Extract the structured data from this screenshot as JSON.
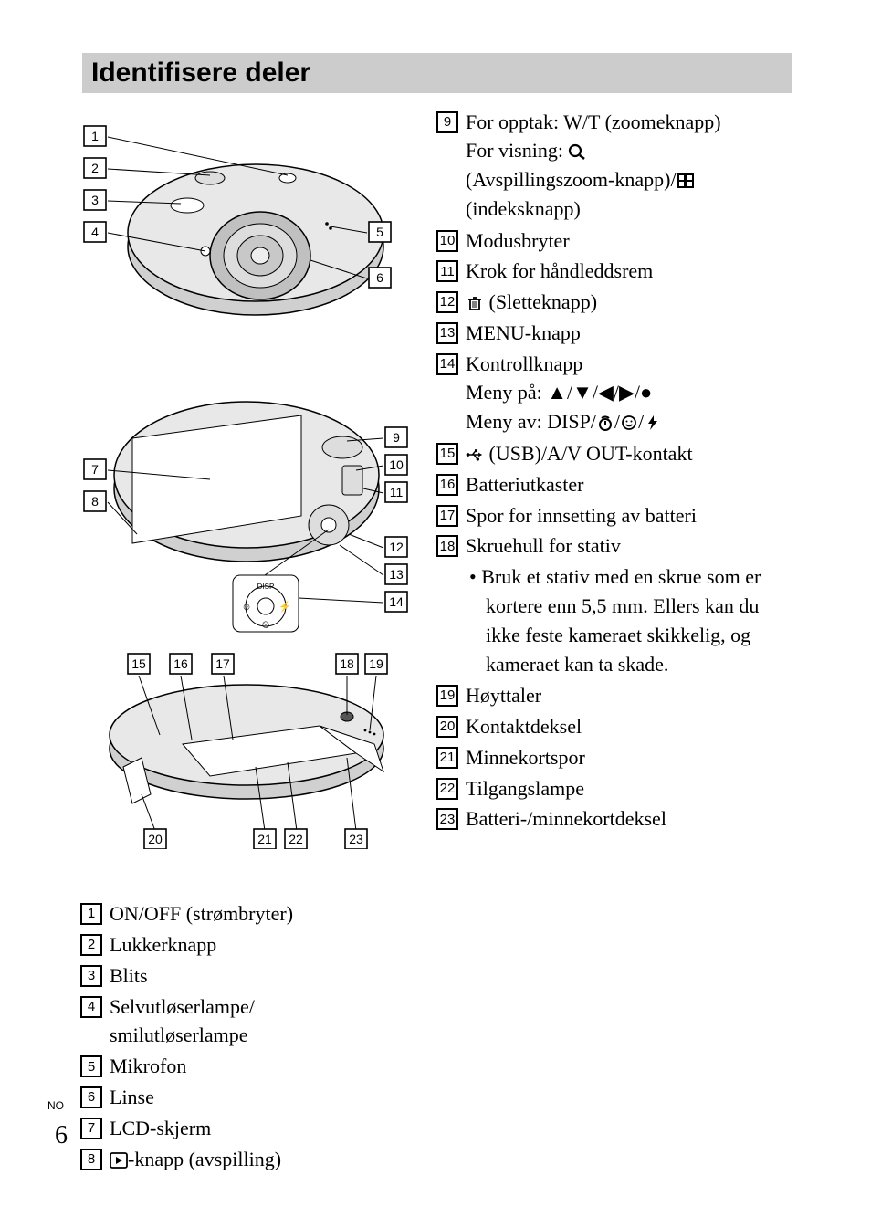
{
  "heading": "Identifisere deler",
  "page_label": "NO",
  "page_number": "6",
  "left_list_start": 1,
  "left_list": [
    {
      "n": "1",
      "lines": [
        "ON/OFF (strømbryter)"
      ]
    },
    {
      "n": "2",
      "lines": [
        "Lukkerknapp"
      ]
    },
    {
      "n": "3",
      "lines": [
        "Blits"
      ]
    },
    {
      "n": "4",
      "lines": [
        "Selvutløserlampe/",
        "smilutløserlampe"
      ]
    },
    {
      "n": "5",
      "lines": [
        "Mikrofon"
      ]
    },
    {
      "n": "6",
      "lines": [
        "Linse"
      ]
    },
    {
      "n": "7",
      "lines": [
        "LCD-skjerm"
      ]
    },
    {
      "n": "8",
      "lines": [
        "{play}-knapp (avspilling)"
      ]
    }
  ],
  "right_list": [
    {
      "n": "9",
      "lines": [
        "For opptak: W/T (zoomeknapp)",
        "For visning: {mag}",
        "(Avspillingszoom-knapp)/{grid}",
        "(indeksknapp)"
      ]
    },
    {
      "n": "10",
      "lines": [
        "Modusbryter"
      ]
    },
    {
      "n": "11",
      "lines": [
        "Krok for håndleddsrem"
      ]
    },
    {
      "n": "12",
      "lines": [
        "{trash} (Sletteknapp)"
      ]
    },
    {
      "n": "13",
      "lines": [
        "MENU-knapp"
      ]
    },
    {
      "n": "14",
      "lines": [
        "Kontrollknapp",
        "Meny på: ▲/▼/◀/▶/●",
        "Meny av: DISP/{timer}/{smile}/{flash}"
      ]
    },
    {
      "n": "15",
      "lines": [
        "{usb} (USB)/A/V OUT-kontakt"
      ]
    },
    {
      "n": "16",
      "lines": [
        "Batteriutkaster"
      ]
    },
    {
      "n": "17",
      "lines": [
        "Spor for innsetting av batteri"
      ]
    },
    {
      "n": "18",
      "lines": [
        "Skruehull for stativ"
      ],
      "sub": [
        "Bruk et stativ med en skrue som er kortere enn 5,5 mm. Ellers kan du ikke feste kameraet skikkelig, og kameraet kan ta skade."
      ]
    },
    {
      "n": "19",
      "lines": [
        "Høyttaler"
      ]
    },
    {
      "n": "20",
      "lines": [
        "Kontaktdeksel"
      ]
    },
    {
      "n": "21",
      "lines": [
        "Minnekortspor"
      ]
    },
    {
      "n": "22",
      "lines": [
        "Tilgangslampe"
      ]
    },
    {
      "n": "23",
      "lines": [
        "Batteri-/minnekortdeksel"
      ]
    }
  ],
  "callouts": {
    "front": [
      "1",
      "2",
      "3",
      "4",
      "5",
      "6"
    ],
    "back": [
      "7",
      "8",
      "9",
      "10",
      "11",
      "12",
      "13",
      "14"
    ],
    "bottom_top": [
      "15",
      "16",
      "17",
      "18",
      "19"
    ],
    "bottom_bot": [
      "20",
      "21",
      "22",
      "23"
    ]
  }
}
